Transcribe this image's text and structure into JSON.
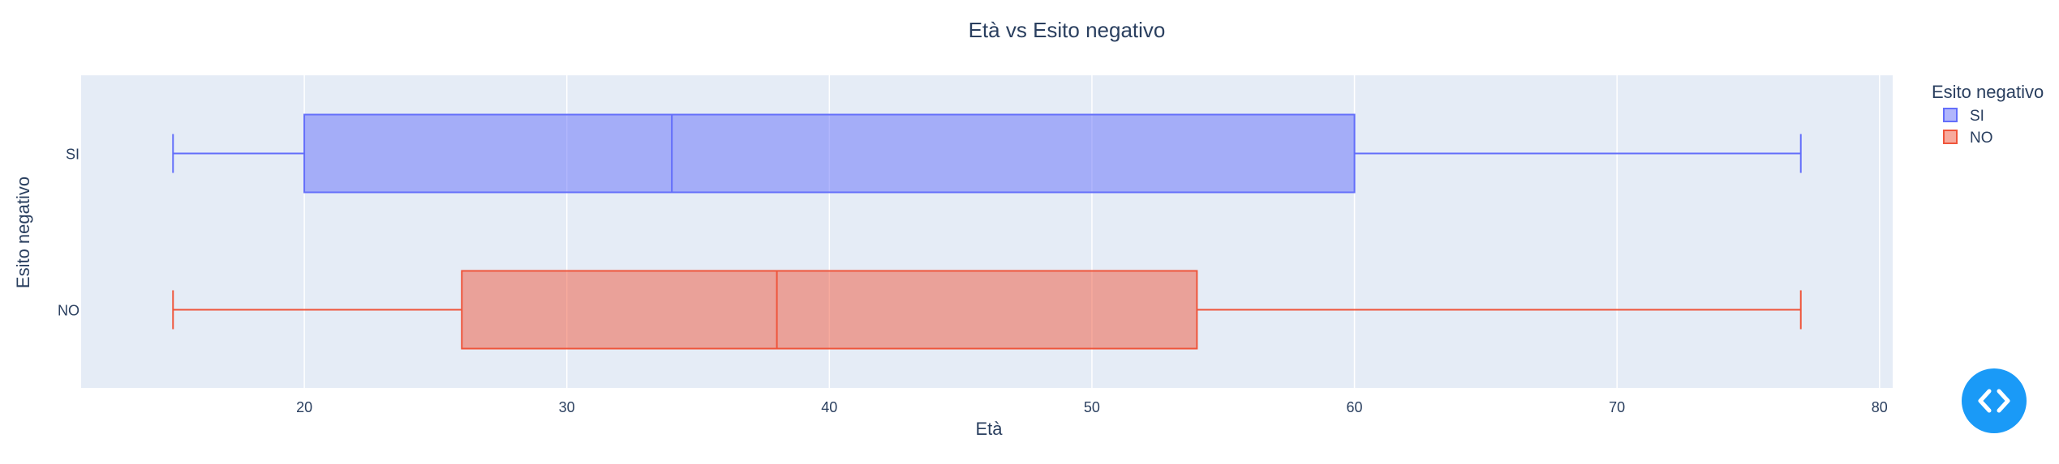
{
  "chart_data": {
    "type": "box",
    "title": "Età vs Esito negativo",
    "xlabel": "Età",
    "ylabel": "Esito negativo",
    "xlim": [
      11.5,
      80.5
    ],
    "xticks": [
      20,
      30,
      40,
      50,
      60,
      70,
      80
    ],
    "categories": [
      "SI",
      "NO"
    ],
    "grid": true,
    "legend": {
      "title": "Esito negativo",
      "placement": "top-right"
    },
    "series": [
      {
        "name": "SI",
        "color": "#636efa",
        "fill": "rgba(99,110,250,0.5)",
        "min": 15,
        "q1": 20,
        "median": 34,
        "q3": 60,
        "max": 77
      },
      {
        "name": "NO",
        "color": "#ef553b",
        "fill": "rgba(239,85,59,0.5)",
        "min": 15,
        "q1": 26,
        "median": 38,
        "q3": 54,
        "max": 77
      }
    ]
  },
  "ui": {
    "code_button_icon": "code-brackets-icon"
  }
}
